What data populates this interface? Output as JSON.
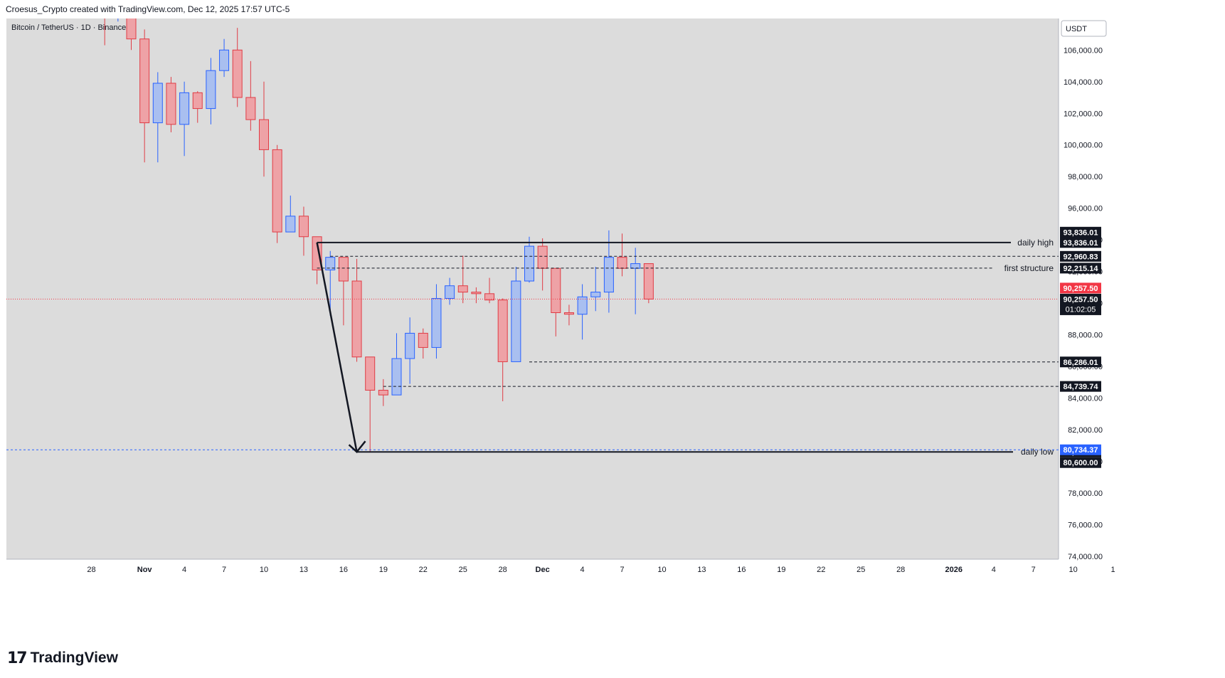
{
  "header": {
    "attribution": "Croesus_Crypto created with TradingView.com, Dec 12, 2025 17:57 UTC-5"
  },
  "footer": {
    "brand": "TradingView"
  },
  "chart_data": {
    "type": "candlestick",
    "title": "Bitcoin / TetherUS · 1D · Binance",
    "currency": "USDT",
    "ylim": [
      73500,
      109000
    ],
    "grid": false,
    "y_ticks": [
      74000,
      76000,
      78000,
      80000,
      82000,
      84000,
      86000,
      88000,
      90000,
      92000,
      94000,
      96000,
      98000,
      100000,
      102000,
      104000,
      106000
    ],
    "x_ticks": [
      {
        "i": -1,
        "label": "28"
      },
      {
        "i": 3,
        "label": "Nov"
      },
      {
        "i": 6,
        "label": "4"
      },
      {
        "i": 9,
        "label": "7"
      },
      {
        "i": 12,
        "label": "10"
      },
      {
        "i": 15,
        "label": "13"
      },
      {
        "i": 18,
        "label": "16"
      },
      {
        "i": 21,
        "label": "19"
      },
      {
        "i": 24,
        "label": "22"
      },
      {
        "i": 27,
        "label": "25"
      },
      {
        "i": 30,
        "label": "28"
      },
      {
        "i": 33,
        "label": "Dec"
      },
      {
        "i": 36,
        "label": "4"
      },
      {
        "i": 39,
        "label": "7"
      },
      {
        "i": 42,
        "label": "10"
      },
      {
        "i": 45,
        "label": "13"
      },
      {
        "i": 48,
        "label": "16"
      },
      {
        "i": 51,
        "label": "19"
      },
      {
        "i": 54,
        "label": "22"
      },
      {
        "i": 57,
        "label": "25"
      },
      {
        "i": 60,
        "label": "28"
      },
      {
        "i": 64,
        "label": "2026"
      },
      {
        "i": 67,
        "label": "4"
      },
      {
        "i": 70,
        "label": "7"
      },
      {
        "i": 73,
        "label": "10"
      },
      {
        "i": 76,
        "label": "1"
      }
    ],
    "candles": [
      {
        "date": "2025-10-31",
        "o": 109500,
        "h": 111000,
        "l": 106300,
        "c": 109000
      },
      {
        "date": "2025-11-01",
        "o": 109000,
        "h": 110500,
        "l": 107800,
        "c": 109600
      },
      {
        "date": "2025-11-02",
        "o": 109600,
        "h": 110200,
        "l": 106000,
        "c": 106700
      },
      {
        "date": "2025-11-03",
        "o": 106700,
        "h": 107300,
        "l": 98900,
        "c": 101400
      },
      {
        "date": "2025-11-04",
        "o": 101400,
        "h": 104600,
        "l": 98900,
        "c": 103900
      },
      {
        "date": "2025-11-05",
        "o": 103900,
        "h": 104300,
        "l": 100800,
        "c": 101300
      },
      {
        "date": "2025-11-06",
        "o": 101300,
        "h": 104000,
        "l": 99300,
        "c": 103300
      },
      {
        "date": "2025-11-07",
        "o": 103300,
        "h": 103400,
        "l": 101400,
        "c": 102300
      },
      {
        "date": "2025-11-08",
        "o": 102300,
        "h": 105500,
        "l": 101300,
        "c": 104700
      },
      {
        "date": "2025-11-09",
        "o": 104700,
        "h": 106700,
        "l": 104300,
        "c": 106000
      },
      {
        "date": "2025-11-10",
        "o": 106000,
        "h": 107400,
        "l": 102400,
        "c": 103000
      },
      {
        "date": "2025-11-11",
        "o": 103000,
        "h": 105300,
        "l": 100900,
        "c": 101600
      },
      {
        "date": "2025-11-12",
        "o": 101600,
        "h": 104000,
        "l": 98000,
        "c": 99700
      },
      {
        "date": "2025-11-13",
        "o": 99700,
        "h": 100000,
        "l": 93800,
        "c": 94500
      },
      {
        "date": "2025-11-14",
        "o": 94500,
        "h": 96800,
        "l": 94500,
        "c": 95500
      },
      {
        "date": "2025-11-15",
        "o": 95500,
        "h": 96100,
        "l": 93000,
        "c": 94200
      },
      {
        "date": "2025-11-16",
        "o": 94200,
        "h": 94200,
        "l": 91200,
        "c": 92100
      },
      {
        "date": "2025-11-17",
        "o": 92100,
        "h": 93300,
        "l": 89200,
        "c": 92900
      },
      {
        "date": "2025-11-18",
        "o": 92900,
        "h": 92900,
        "l": 88600,
        "c": 91400
      },
      {
        "date": "2025-11-19",
        "o": 91400,
        "h": 92800,
        "l": 86300,
        "c": 86600
      },
      {
        "date": "2025-11-20",
        "o": 86600,
        "h": 86600,
        "l": 80600,
        "c": 84500
      },
      {
        "date": "2025-11-21",
        "o": 84500,
        "h": 85200,
        "l": 83500,
        "c": 84200
      },
      {
        "date": "2025-11-22",
        "o": 84200,
        "h": 88100,
        "l": 84200,
        "c": 86500
      },
      {
        "date": "2025-11-23",
        "o": 86500,
        "h": 89100,
        "l": 84900,
        "c": 88100
      },
      {
        "date": "2025-11-24",
        "o": 88100,
        "h": 88400,
        "l": 86500,
        "c": 87200
      },
      {
        "date": "2025-11-25",
        "o": 87200,
        "h": 91200,
        "l": 86500,
        "c": 90300
      },
      {
        "date": "2025-11-26",
        "o": 90300,
        "h": 91600,
        "l": 89900,
        "c": 91100
      },
      {
        "date": "2025-11-27",
        "o": 91100,
        "h": 93000,
        "l": 90000,
        "c": 90700
      },
      {
        "date": "2025-11-28",
        "o": 90700,
        "h": 91000,
        "l": 90000,
        "c": 90600
      },
      {
        "date": "2025-11-29",
        "o": 90600,
        "h": 91600,
        "l": 90000,
        "c": 90200
      },
      {
        "date": "2025-11-30",
        "o": 90200,
        "h": 90300,
        "l": 83800,
        "c": 86300
      },
      {
        "date": "2025-12-01",
        "o": 86300,
        "h": 92300,
        "l": 86300,
        "c": 91400
      },
      {
        "date": "2025-12-02",
        "o": 91400,
        "h": 94200,
        "l": 91300,
        "c": 93600
      },
      {
        "date": "2025-12-03",
        "o": 93600,
        "h": 94100,
        "l": 90800,
        "c": 92200
      },
      {
        "date": "2025-12-04",
        "o": 92200,
        "h": 92200,
        "l": 87900,
        "c": 89400
      },
      {
        "date": "2025-12-05",
        "o": 89400,
        "h": 89900,
        "l": 88600,
        "c": 89300
      },
      {
        "date": "2025-12-06",
        "o": 89300,
        "h": 91200,
        "l": 87700,
        "c": 90400
      },
      {
        "date": "2025-12-07",
        "o": 90400,
        "h": 92300,
        "l": 89500,
        "c": 90700
      },
      {
        "date": "2025-12-08",
        "o": 90700,
        "h": 94600,
        "l": 89400,
        "c": 92900
      },
      {
        "date": "2025-12-09",
        "o": 92900,
        "h": 94400,
        "l": 91700,
        "c": 92200
      },
      {
        "date": "2025-12-10",
        "o": 92200,
        "h": 93500,
        "l": 89300,
        "c": 92500
      },
      {
        "date": "2025-12-11",
        "o": 92500,
        "h": 92500,
        "l": 90000,
        "c": 90257.5
      }
    ],
    "levels": [
      {
        "price": 93836.01,
        "style": "solid",
        "label": "daily high",
        "tag": "93,836.01",
        "tag_color": "#131722"
      },
      {
        "price": 92960.83,
        "style": "dashed",
        "label": "",
        "tag": "92,960.83",
        "tag_color": "#131722"
      },
      {
        "price": 92215.14,
        "style": "dashed",
        "label": "first structure",
        "tag": "92,215.14",
        "tag_color": "#131722"
      },
      {
        "price": 86286.01,
        "style": "dashed",
        "label": "",
        "tag": "86,286.01",
        "tag_color": "#131722"
      },
      {
        "price": 84739.74,
        "style": "dashed",
        "label": "",
        "tag": "84,739.74",
        "tag_color": "#131722"
      },
      {
        "price": 80600.0,
        "style": "solid",
        "label": "daily low",
        "tag": "80,600.00",
        "tag_color": "#131722"
      }
    ],
    "last_price": {
      "value": 90257.5,
      "label": "90,257.50",
      "countdown": "01:02:05",
      "color": "#f23645"
    },
    "blue_level": {
      "value": 80734.37,
      "label": "80,734.37",
      "color": "#2962ff"
    },
    "extra_tags": [
      "93,836.01",
      "80,600.00"
    ],
    "colors": {
      "up_fill": "#a9bff0",
      "up_border": "#2962ff",
      "down_fill": "#eea2a6",
      "down_border": "#e03c45",
      "background": "#dcdcdc"
    }
  }
}
